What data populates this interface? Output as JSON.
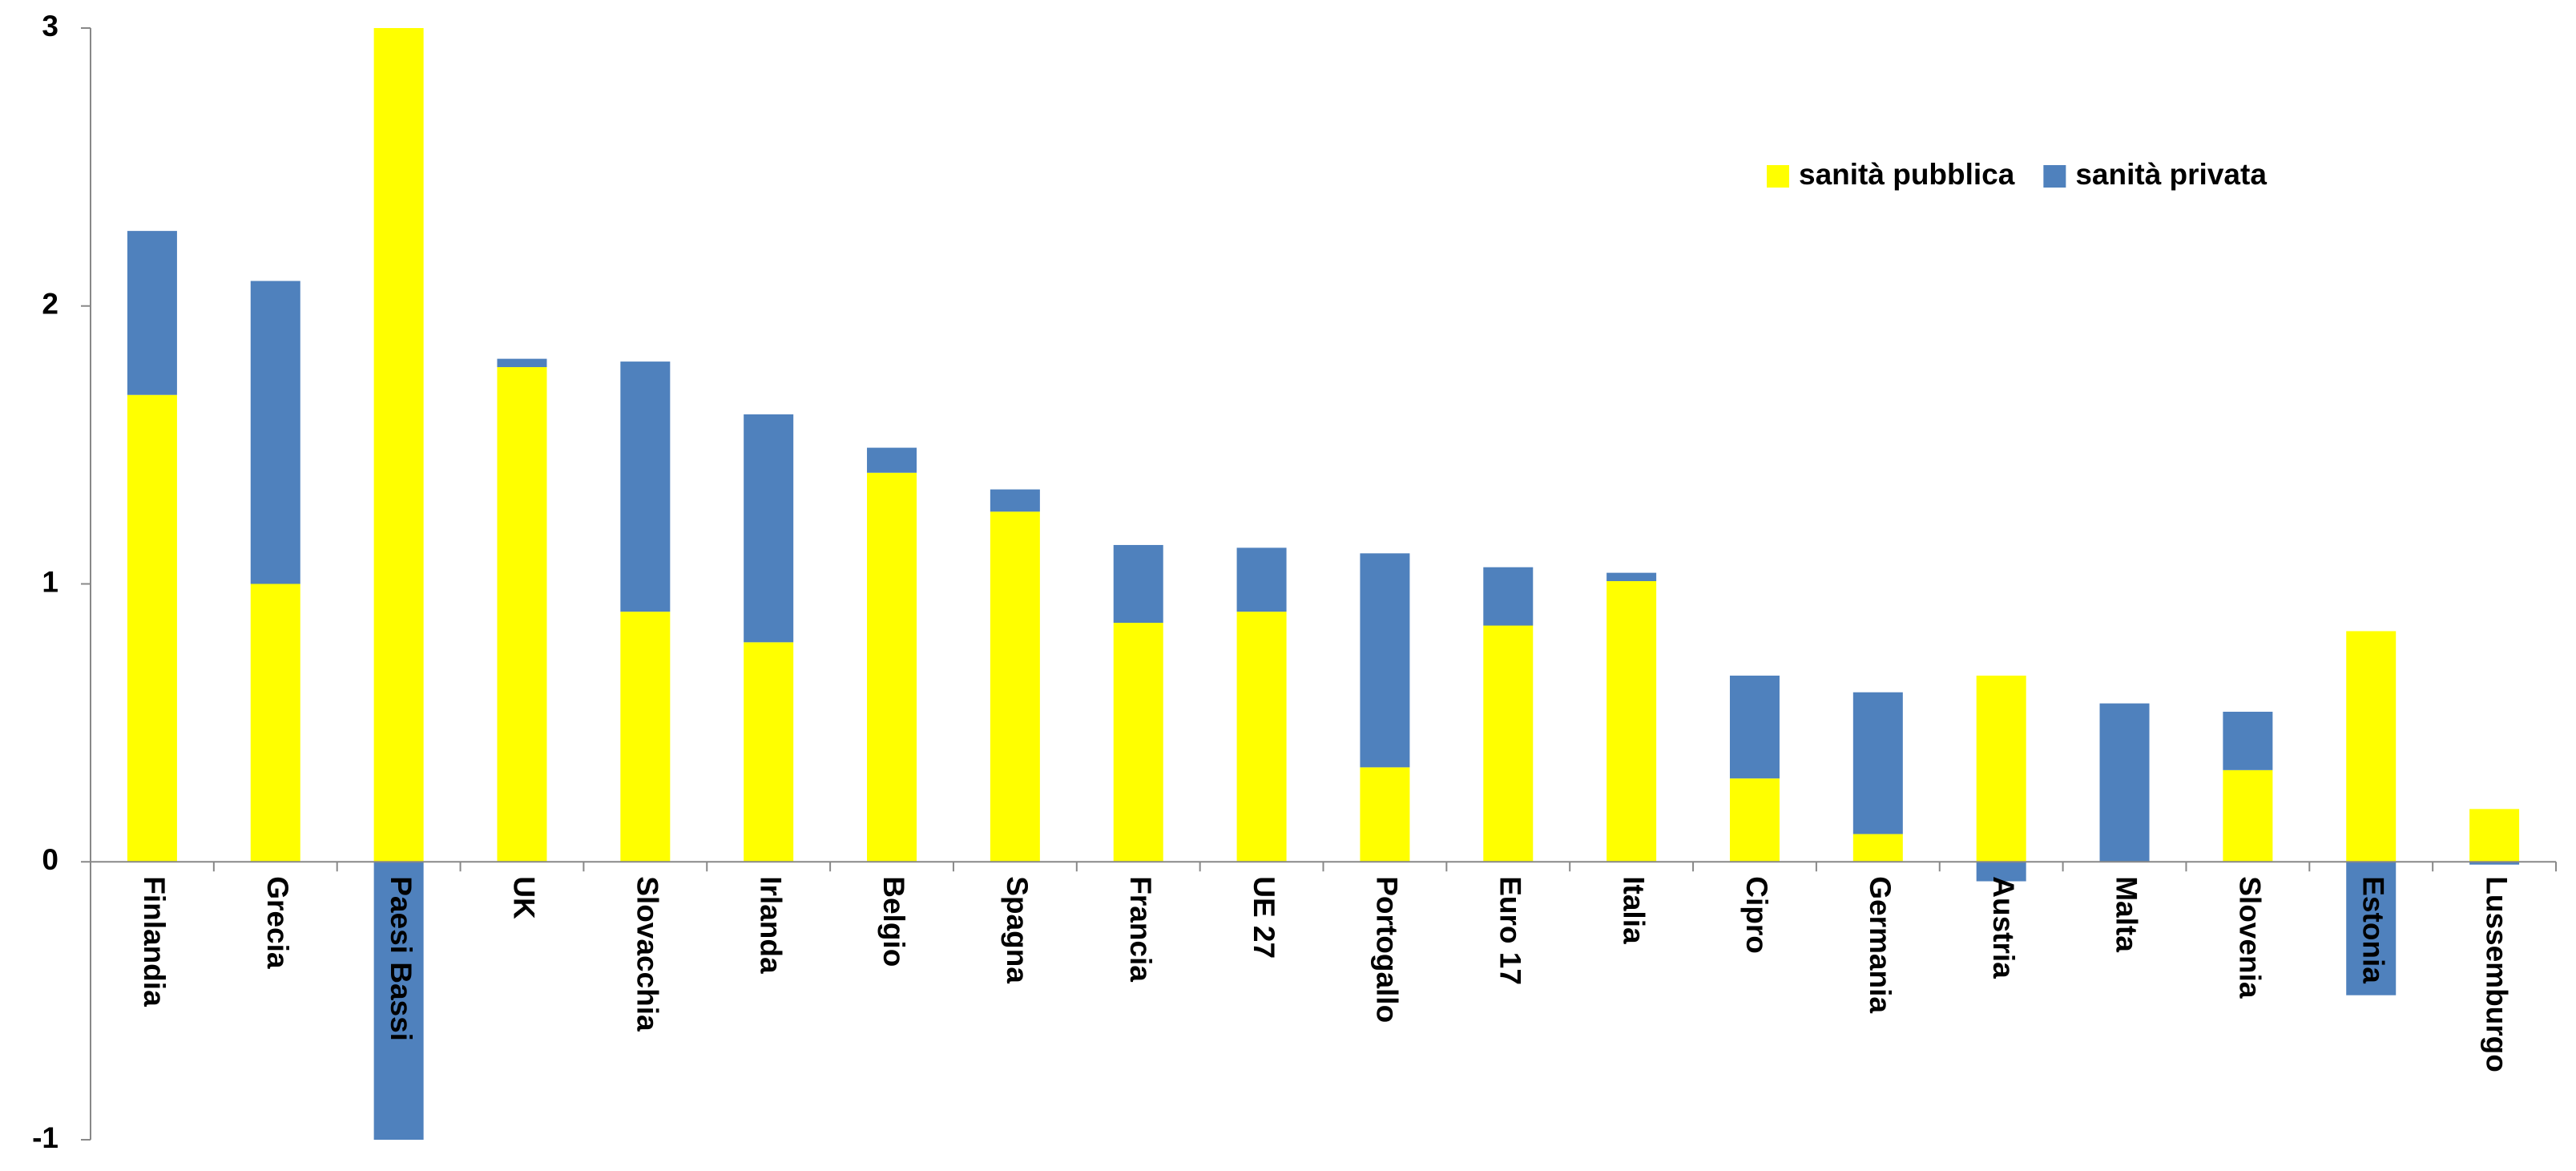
{
  "chart_data": {
    "type": "stacked-bar",
    "categories": [
      "Finlandia",
      "Grecia",
      "Paesi Bassi",
      "UK",
      "Slovacchia",
      "Irlanda",
      "Belgio",
      "Spagna",
      "Francia",
      "UE 27",
      "Portogallo",
      "Euro 17",
      "Italia",
      "Cipro",
      "Germania",
      "Austria",
      "Malta",
      "Slovenia",
      "Estonia",
      "Lussemburgo"
    ],
    "series": [
      {
        "name": "sanità pubblica",
        "color": "#ffff00",
        "values": [
          1.68,
          1.0,
          3.0,
          1.78,
          0.9,
          0.79,
          1.4,
          1.26,
          0.86,
          0.9,
          0.34,
          0.85,
          1.01,
          0.3,
          0.1,
          0.67,
          0,
          0.33,
          0.83,
          0.19
        ]
      },
      {
        "name": "sanità privata",
        "color": "#4f81bd",
        "values": [
          0.59,
          1.09,
          -1.0,
          0.03,
          0.9,
          0.82,
          0.09,
          0.08,
          0.28,
          0.23,
          0.77,
          0.21,
          0.03,
          0.37,
          0.51,
          -0.07,
          0.57,
          0.21,
          -0.48,
          -0.01
        ]
      }
    ],
    "ylim": [
      -1,
      3
    ],
    "yticks": [
      -1,
      0,
      1,
      2,
      3
    ],
    "legend": "top-right"
  }
}
